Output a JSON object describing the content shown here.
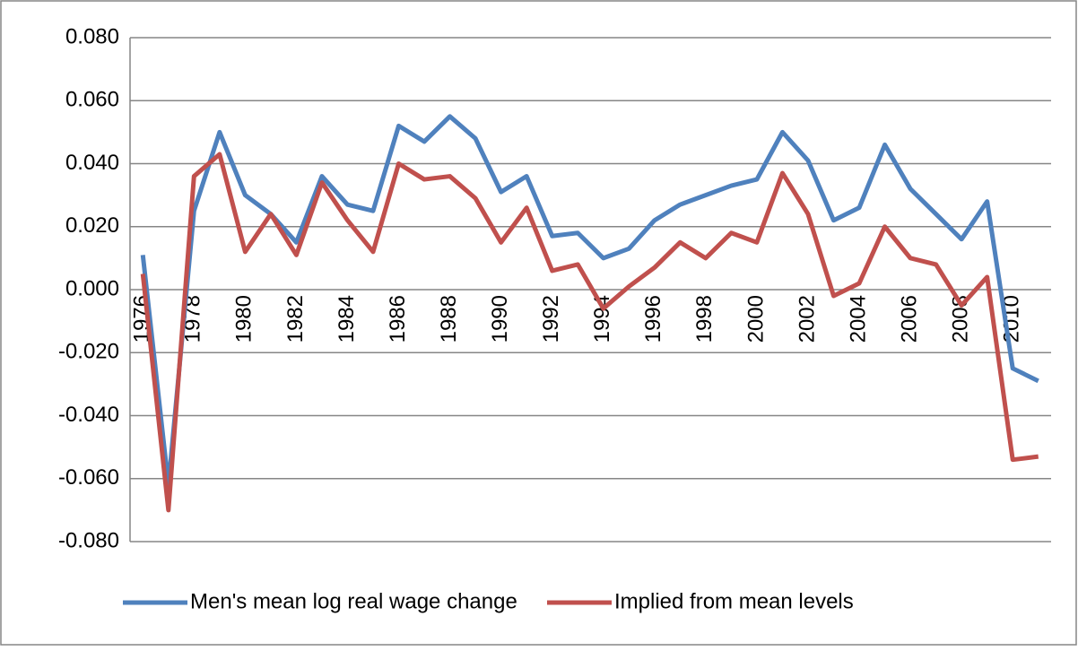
{
  "chart_data": {
    "type": "line",
    "categories": [
      "1976",
      null,
      "1978",
      null,
      "1980",
      null,
      "1982",
      null,
      "1984",
      null,
      "1986",
      null,
      "1988",
      null,
      "1990",
      null,
      "1992",
      null,
      "1994",
      null,
      "1996",
      null,
      "1998",
      null,
      "2000",
      null,
      "2002",
      null,
      "2004",
      null,
      "2006",
      null,
      "2008",
      null,
      "2010",
      null
    ],
    "series": [
      {
        "name": "Men's mean log real wage change",
        "color": "#4f81bd",
        "values": [
          0.011,
          -0.062,
          0.025,
          0.05,
          0.03,
          0.024,
          0.015,
          0.036,
          0.027,
          0.025,
          0.052,
          0.047,
          0.055,
          0.048,
          0.031,
          0.036,
          0.017,
          0.018,
          0.01,
          0.013,
          0.022,
          0.027,
          0.03,
          0.033,
          0.035,
          0.05,
          0.041,
          0.022,
          0.026,
          0.046,
          0.032,
          0.024,
          0.016,
          0.028,
          -0.025,
          -0.029
        ]
      },
      {
        "name": "Implied from mean levels",
        "color": "#c0504d",
        "values": [
          0.005,
          -0.07,
          0.036,
          0.043,
          0.012,
          0.024,
          0.011,
          0.034,
          0.022,
          0.012,
          0.04,
          0.035,
          0.036,
          0.029,
          0.015,
          0.026,
          0.006,
          0.008,
          -0.006,
          0.001,
          0.007,
          0.015,
          0.01,
          0.018,
          0.015,
          0.037,
          0.024,
          -0.002,
          0.002,
          0.02,
          0.01,
          0.008,
          -0.005,
          0.004,
          -0.054,
          -0.053
        ]
      }
    ],
    "ylim": [
      -0.08,
      0.08
    ],
    "yticks": [
      {
        "value": -0.08,
        "label": "-0.080"
      },
      {
        "value": -0.06,
        "label": "-0.060"
      },
      {
        "value": -0.04,
        "label": "-0.040"
      },
      {
        "value": -0.02,
        "label": "-0.020"
      },
      {
        "value": 0,
        "label": "0.000"
      },
      {
        "value": 0.02,
        "label": "0.020"
      },
      {
        "value": 0.04,
        "label": "0.040"
      },
      {
        "value": 0.06,
        "label": "0.060"
      },
      {
        "value": 0.08,
        "label": "0.080"
      }
    ],
    "grid": true,
    "legend": "bottom"
  }
}
